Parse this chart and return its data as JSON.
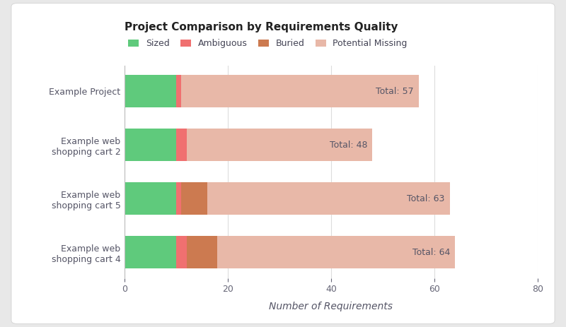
{
  "title": "Project Comparison by Requirements Quality",
  "xlabel": "Number of Requirements",
  "categories": [
    "Example Project",
    "Example web\nshopping cart 2",
    "Example web\nshopping cart 5",
    "Example web\nshopping cart 4"
  ],
  "series": {
    "Sized": [
      10,
      10,
      10,
      10
    ],
    "Ambiguous": [
      1,
      2,
      1,
      2
    ],
    "Buried": [
      0,
      0,
      5,
      6
    ],
    "Potential Missing": [
      46,
      36,
      47,
      46
    ]
  },
  "totals": [
    57,
    48,
    63,
    64
  ],
  "colors": {
    "Sized": "#5fca7c",
    "Ambiguous": "#f07070",
    "Buried": "#cc7a50",
    "Potential Missing": "#e8b8a8"
  },
  "xlim": [
    0,
    80
  ],
  "xticks": [
    0,
    20,
    40,
    60,
    80
  ],
  "outer_bg": "#e8e8e8",
  "inner_bg": "#ffffff",
  "title_fontsize": 11,
  "label_fontsize": 9,
  "tick_fontsize": 9,
  "total_label_color": "#555566",
  "total_label_fontsize": 9,
  "bar_height": 0.6
}
